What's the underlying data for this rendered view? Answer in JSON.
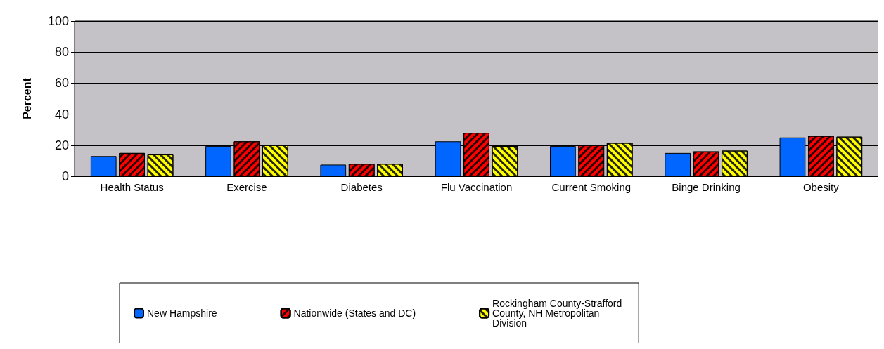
{
  "chart_data": {
    "type": "bar",
    "ylabel": "Percent",
    "categories": [
      "Health Status",
      "Exercise",
      "Diabetes",
      "Flu Vaccination",
      "Current Smoking",
      "Binge Drinking",
      "Obesity"
    ],
    "series": [
      {
        "name": "New Hampshire",
        "color": "#0066ff",
        "values": [
          13,
          19.5,
          7.5,
          22.5,
          19.5,
          15,
          25
        ]
      },
      {
        "name": "Nationwide (States and DC)",
        "color": "#ff0000",
        "values": [
          15,
          22.5,
          8,
          28,
          20,
          16,
          26
        ]
      },
      {
        "name": "Rockingham County-Strafford County, NH Metropolitan Division",
        "color": "#ffff00",
        "values": [
          14,
          20,
          8,
          19.5,
          21.5,
          16.5,
          25.5
        ]
      }
    ],
    "ylim": [
      0,
      100
    ],
    "yticks": [
      0,
      20,
      40,
      60,
      80,
      100
    ],
    "grid": "y",
    "legend": "bottom"
  }
}
